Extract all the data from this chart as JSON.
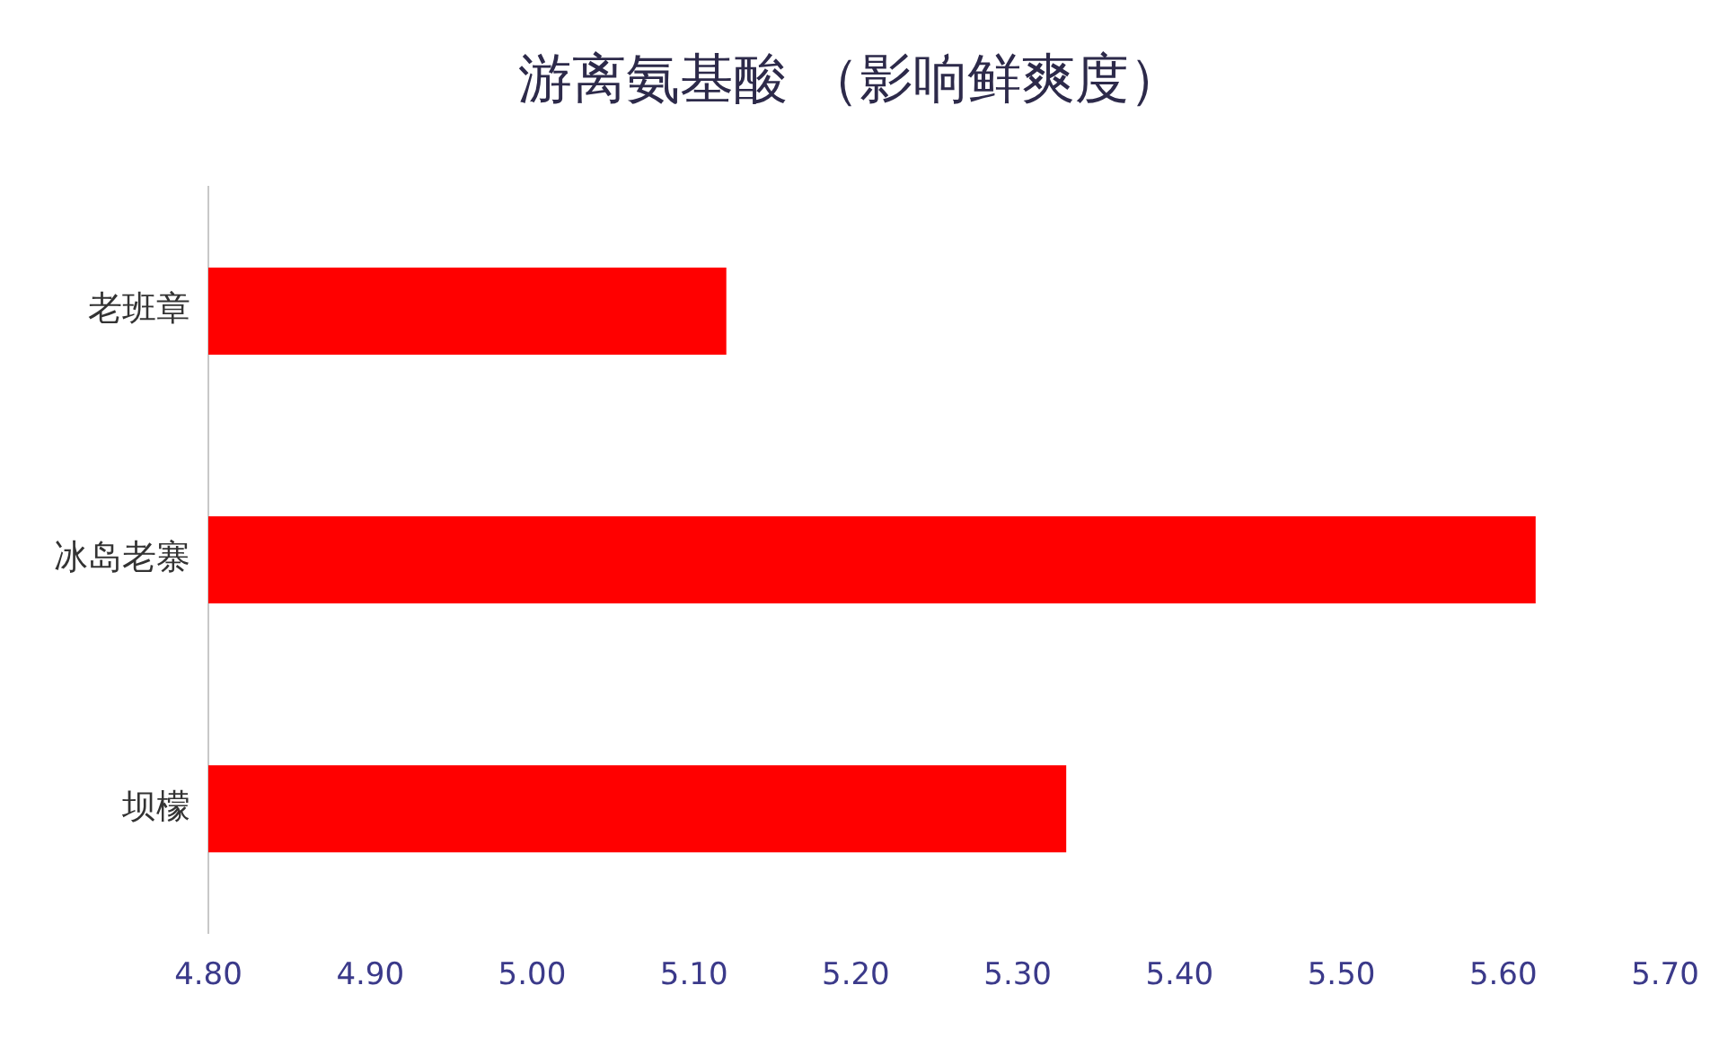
{
  "chart_data": {
    "type": "bar",
    "orientation": "horizontal",
    "title": "游离氨基酸 （影响鲜爽度）",
    "categories": [
      "老班章",
      "冰岛老寨",
      "坝檬"
    ],
    "values": [
      5.12,
      5.62,
      5.33
    ],
    "color": "#ff0000",
    "xlim": [
      4.8,
      5.7
    ],
    "xticks": [
      {
        "value": 4.8,
        "label": "4.80"
      },
      {
        "value": 4.9,
        "label": "4.90"
      },
      {
        "value": 5.0,
        "label": "5.00"
      },
      {
        "value": 5.1,
        "label": "5.10"
      },
      {
        "value": 5.2,
        "label": "5.20"
      },
      {
        "value": 5.3,
        "label": "5.30"
      },
      {
        "value": 5.4,
        "label": "5.40"
      },
      {
        "value": 5.5,
        "label": "5.50"
      },
      {
        "value": 5.6,
        "label": "5.60"
      },
      {
        "value": 5.7,
        "label": "5.70"
      }
    ],
    "grid": false,
    "legend": false
  }
}
